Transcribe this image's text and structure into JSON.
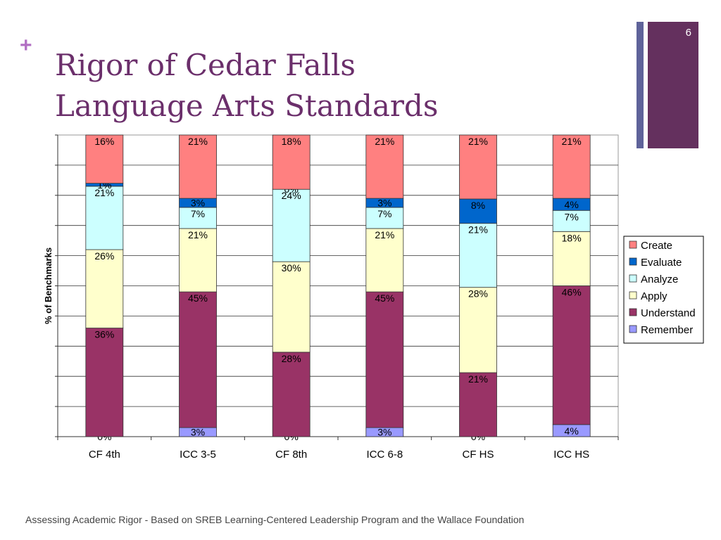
{
  "slide": {
    "page_number": "6",
    "plus_symbol": "+",
    "title_line1": "Rigor of Cedar Falls",
    "title_line2": "Language Arts Standards",
    "footer": "Assessing Academic Rigor - Based on SREB Learning-Centered Leadership Program and the Wallace Foundation"
  },
  "chart_data": {
    "type": "bar",
    "stacked": true,
    "ylabel": "% of Benchmarks",
    "ylim": [
      0,
      100
    ],
    "grid": true,
    "legend_position": "right",
    "categories": [
      "CF 4th",
      "ICC 3-5",
      "CF 8th",
      "ICC 6-8",
      "CF HS",
      "ICC HS"
    ],
    "series": [
      {
        "name": "Remember",
        "color": "#9999ff",
        "values": [
          0,
          3,
          0,
          3,
          0,
          4
        ],
        "labels": [
          "0%",
          "3%",
          "0%",
          "3%",
          "0%",
          "4%"
        ]
      },
      {
        "name": "Understand",
        "color": "#993366",
        "values": [
          36,
          45,
          28,
          45,
          21,
          46
        ],
        "labels": [
          "36%",
          "45%",
          "28%",
          "45%",
          "21%",
          "46%"
        ]
      },
      {
        "name": "Apply",
        "color": "#ffffcc",
        "values": [
          26,
          21,
          30,
          21,
          28,
          18
        ],
        "labels": [
          "26%",
          "21%",
          "30%",
          "21%",
          "28%",
          "18%"
        ]
      },
      {
        "name": "Analyze",
        "color": "#ccffff",
        "values": [
          21,
          7,
          24,
          7,
          21,
          7
        ],
        "labels": [
          "21%",
          "7%",
          "24%",
          "7%",
          "21%",
          "7%"
        ]
      },
      {
        "name": "Evaluate",
        "color": "#0066cc",
        "values": [
          1,
          3,
          0,
          3,
          8,
          4
        ],
        "labels": [
          "1%",
          "3%",
          "0%",
          "3%",
          "8%",
          "4%"
        ]
      },
      {
        "name": "Create",
        "color": "#ff8080",
        "values": [
          16,
          21,
          18,
          21,
          21,
          21
        ],
        "labels": [
          "16%",
          "21%",
          "18%",
          "21%",
          "21%",
          "21%"
        ]
      }
    ],
    "legend_order": [
      "Create",
      "Evaluate",
      "Analyze",
      "Apply",
      "Understand",
      "Remember"
    ]
  }
}
